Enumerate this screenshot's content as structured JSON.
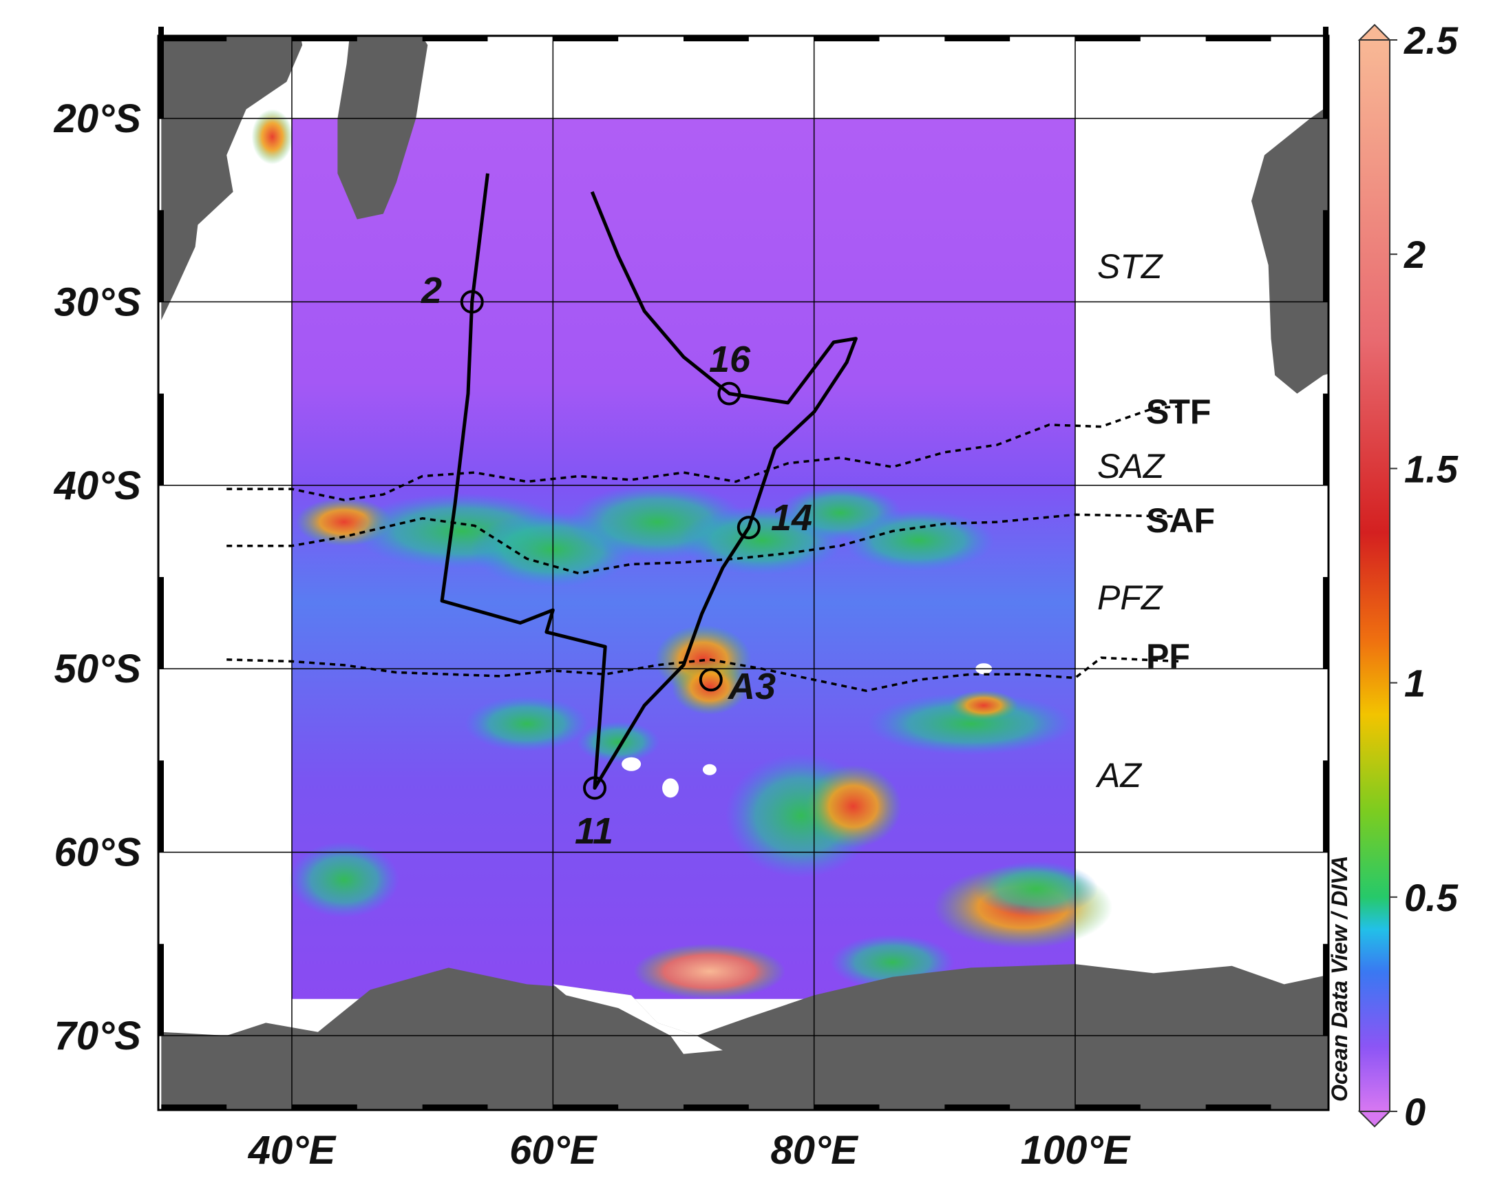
{
  "map": {
    "lon_range": [
      30,
      120
    ],
    "lat_range": [
      -74,
      -15
    ],
    "lon_ticks": [
      {
        "value": 40,
        "label": "40°E"
      },
      {
        "value": 60,
        "label": "60°E"
      },
      {
        "value": 80,
        "label": "80°E"
      },
      {
        "value": 100,
        "label": "100°E"
      }
    ],
    "lat_ticks": [
      {
        "value": -20,
        "label": "20°S"
      },
      {
        "value": -30,
        "label": "30°S"
      },
      {
        "value": -40,
        "label": "40°S"
      },
      {
        "value": -50,
        "label": "50°S"
      },
      {
        "value": -60,
        "label": "60°S"
      },
      {
        "value": -70,
        "label": "70°S"
      }
    ],
    "data_region": {
      "lon": [
        40,
        100
      ],
      "lat": [
        -68,
        -20
      ]
    },
    "colors": {
      "land": "#5f5f5f",
      "ocean_low": "#8a4bf2",
      "ocean_high_north": "#b05ef5",
      "grid": "#000000",
      "track": "#000000"
    }
  },
  "colorbar": {
    "min": 0,
    "max": 2.5,
    "ticks": [
      {
        "value": 0,
        "label": "0"
      },
      {
        "value": 0.5,
        "label": "0.5"
      },
      {
        "value": 1,
        "label": "1"
      },
      {
        "value": 1.5,
        "label": "1.5"
      },
      {
        "value": 2,
        "label": "2"
      },
      {
        "value": 2.5,
        "label": "2.5"
      }
    ],
    "stops": [
      "#d878f2",
      "#8c55f5",
      "#3a78f2",
      "#22c0e8",
      "#26c96a",
      "#7ccc20",
      "#f2c400",
      "#ef7010",
      "#d42020",
      "#e86a70",
      "#f8b895"
    ],
    "side_title": "Ocean Data View / DIVA"
  },
  "zones": [
    {
      "label": "STZ"
    },
    {
      "label": "SAZ"
    },
    {
      "label": "PFZ"
    },
    {
      "label": "AZ"
    }
  ],
  "fronts": [
    {
      "label": "STF"
    },
    {
      "label": "SAF"
    },
    {
      "label": "PF"
    }
  ],
  "stations": [
    {
      "label": "2",
      "lon": 53.8,
      "lat": -30.0
    },
    {
      "label": "16",
      "lon": 73.5,
      "lat": -35.0
    },
    {
      "label": "14",
      "lon": 75.0,
      "lat": -42.3
    },
    {
      "label": "A3",
      "lon": 72.1,
      "lat": -50.6
    },
    {
      "label": "11",
      "lon": 63.2,
      "lat": -56.5
    }
  ]
}
